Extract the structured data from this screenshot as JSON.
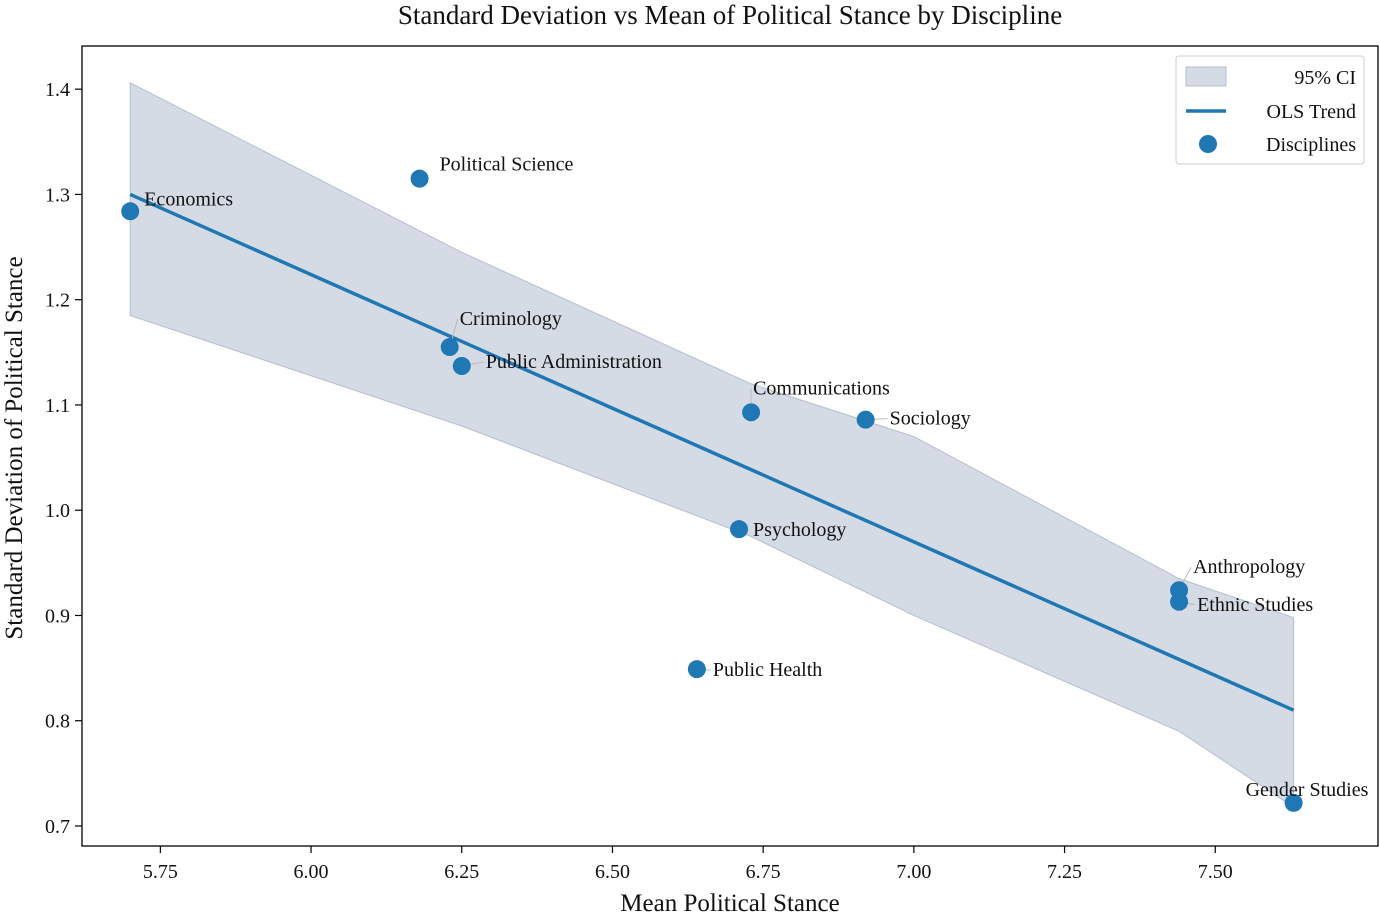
{
  "chart_data": {
    "type": "scatter",
    "title": "Standard Deviation vs Mean of Political Stance by Discipline",
    "xlabel": "Mean Political Stance",
    "ylabel": "Standard Deviation of Political Stance",
    "xlim": [
      5.62,
      7.77
    ],
    "ylim": [
      0.681,
      1.441
    ],
    "xticks": [
      "5.75",
      "6.00",
      "6.25",
      "6.50",
      "6.75",
      "7.00",
      "7.25",
      "7.50"
    ],
    "yticks": [
      "0.7",
      "0.8",
      "0.9",
      "1.0",
      "1.1",
      "1.2",
      "1.3",
      "1.4"
    ],
    "grid": false,
    "legend": {
      "placement": "top-right",
      "entries": [
        "95% CI",
        "OLS Trend",
        "Disciplines"
      ]
    },
    "colors": {
      "points": "#1f77b4",
      "trend": "#1f77b4",
      "ci_fill": "#d5dbe4",
      "ci_edge": "#b4bfce",
      "leader": "#bbbbbb"
    },
    "series": [
      {
        "name": "Disciplines",
        "points": [
          {
            "label": "Economics",
            "x": 5.7,
            "y": 1.284
          },
          {
            "label": "Political Science",
            "x": 6.18,
            "y": 1.315
          },
          {
            "label": "Criminology",
            "x": 6.23,
            "y": 1.155
          },
          {
            "label": "Public Administration",
            "x": 6.25,
            "y": 1.137
          },
          {
            "label": "Communications",
            "x": 6.73,
            "y": 1.093
          },
          {
            "label": "Sociology",
            "x": 6.92,
            "y": 1.086
          },
          {
            "label": "Psychology",
            "x": 6.71,
            "y": 0.982
          },
          {
            "label": "Public Health",
            "x": 6.64,
            "y": 0.849
          },
          {
            "label": "Anthropology",
            "x": 7.44,
            "y": 0.924
          },
          {
            "label": "Ethnic Studies",
            "x": 7.44,
            "y": 0.913
          },
          {
            "label": "Gender Studies",
            "x": 7.63,
            "y": 0.722
          }
        ]
      },
      {
        "name": "OLS Trend",
        "line": [
          {
            "x": 5.7,
            "y": 1.3
          },
          {
            "x": 7.63,
            "y": 0.81
          }
        ]
      },
      {
        "name": "95% CI",
        "upper": [
          {
            "x": 5.7,
            "y": 1.406
          },
          {
            "x": 6.25,
            "y": 1.245
          },
          {
            "x": 6.73,
            "y": 1.12
          },
          {
            "x": 7.0,
            "y": 1.07
          },
          {
            "x": 7.44,
            "y": 0.935
          },
          {
            "x": 7.63,
            "y": 0.898
          }
        ],
        "lower": [
          {
            "x": 5.7,
            "y": 1.185
          },
          {
            "x": 6.25,
            "y": 1.08
          },
          {
            "x": 6.73,
            "y": 0.975
          },
          {
            "x": 7.0,
            "y": 0.9
          },
          {
            "x": 7.44,
            "y": 0.79
          },
          {
            "x": 7.63,
            "y": 0.718
          }
        ]
      }
    ]
  }
}
